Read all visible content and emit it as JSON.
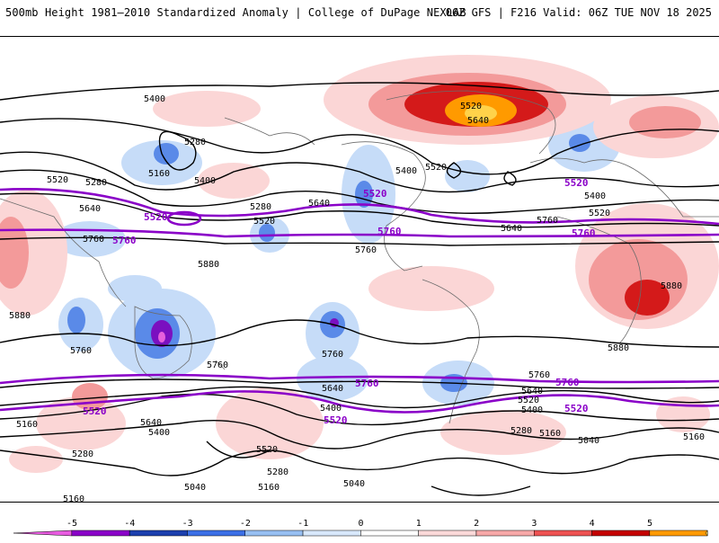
{
  "header": {
    "left": "500mb Height 1981–2010 Standardized Anomaly | College of DuPage NEXLAB",
    "right": "06Z GFS | F216 Valid: 06Z TUE NOV 18 2025"
  },
  "contour_labels": [
    "5400",
    "5280",
    "5520",
    "5160",
    "5640",
    "5760",
    "5880",
    "5040"
  ],
  "purple_contours": [
    "5520",
    "5760"
  ],
  "colorbar": {
    "ticks": [
      "-5",
      "-4",
      "-3",
      "-2",
      "-1",
      "0",
      "1",
      "2",
      "3",
      "4",
      "5"
    ],
    "colors": [
      "#e85be0",
      "#8a00c8",
      "#1c3fae",
      "#3b6fe6",
      "#97bff2",
      "#d8e8fb",
      "#ffffff",
      "#fbd9d9",
      "#f7a8a8",
      "#ee5252",
      "#c40000",
      "#ff9a00",
      "#ffd24a"
    ]
  }
}
